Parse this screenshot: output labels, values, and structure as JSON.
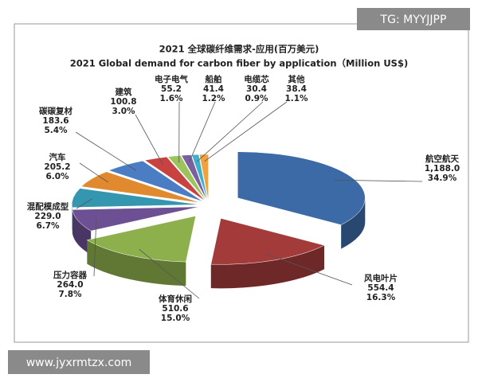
{
  "watermarks": [
    "TG: MYYJJPP",
    "www.jyxrmtzx.com"
  ],
  "chart_data": {
    "type": "pie",
    "title": "2021 全球碳纤维需求-应用(百万美元)",
    "subtitle": "2021 Global demand for carbon fiber by application（Million US$)",
    "categories": [
      "航空航天",
      "风电叶片",
      "体育休闲",
      "压力容器",
      "混配模成型",
      "汽车",
      "碳碳复材",
      "建筑",
      "电子电气",
      "船舶",
      "电缆芯",
      "其他"
    ],
    "values": [
      1188.0,
      554.4,
      510.6,
      264.0,
      229.0,
      205.2,
      183.6,
      100.8,
      55.2,
      41.4,
      30.4,
      38.4
    ],
    "value_labels": [
      "1,188.0",
      "554.4",
      "510.6",
      "264.0",
      "229.0",
      "205.2",
      "183.6",
      "100.8",
      "55.2",
      "41.4",
      "30.4",
      "38.4"
    ],
    "shares": [
      34.9,
      16.3,
      15.0,
      7.8,
      6.7,
      6.0,
      5.4,
      3.0,
      1.6,
      1.2,
      0.9,
      1.1
    ],
    "share_labels": [
      "34.9%",
      "16.3%",
      "15.0%",
      "7.8%",
      "6.7%",
      "6.0%",
      "5.4%",
      "3.0%",
      "1.6%",
      "1.2%",
      "0.9%",
      "1.1%"
    ],
    "colors": [
      "#3b6aa6",
      "#a33b3b",
      "#8db04c",
      "#6d4f93",
      "#3597af",
      "#e0892e",
      "#4b7dc4",
      "#c94242",
      "#9cc45b",
      "#7a60a1",
      "#40b0c9",
      "#f0a23f"
    ]
  }
}
